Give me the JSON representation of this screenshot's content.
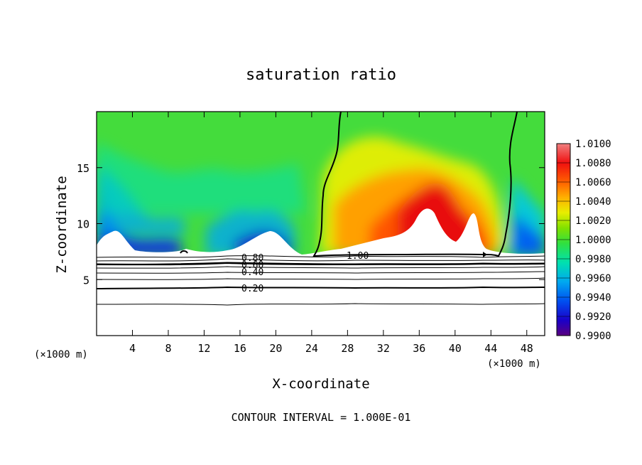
{
  "chart_data": {
    "type": "heatmap",
    "title": "saturation ratio",
    "xlabel": "X-coordinate",
    "ylabel": "Z-coordinate",
    "x_unit_left": "(×1000 m)",
    "x_unit_right": "(×1000 m)",
    "xlim": [
      0,
      50
    ],
    "ylim": [
      0,
      20
    ],
    "xticks": [
      "4",
      "8",
      "12",
      "16",
      "20",
      "24",
      "28",
      "32",
      "36",
      "40",
      "44",
      "48"
    ],
    "yticks": [
      "5",
      "10",
      "15"
    ],
    "colorbar": {
      "min": 0.99,
      "max": 1.01,
      "labels": [
        "1.0100",
        "1.0080",
        "1.0060",
        "1.0040",
        "1.0020",
        "1.0000",
        "0.9980",
        "0.9960",
        "0.9940",
        "0.9920",
        "0.9900"
      ]
    },
    "contour_labels": [
      "0.80",
      "0.60",
      "0.40",
      "0.20",
      "1.00"
    ],
    "footer": "CONTOUR INTERVAL = 1.000E-01"
  }
}
